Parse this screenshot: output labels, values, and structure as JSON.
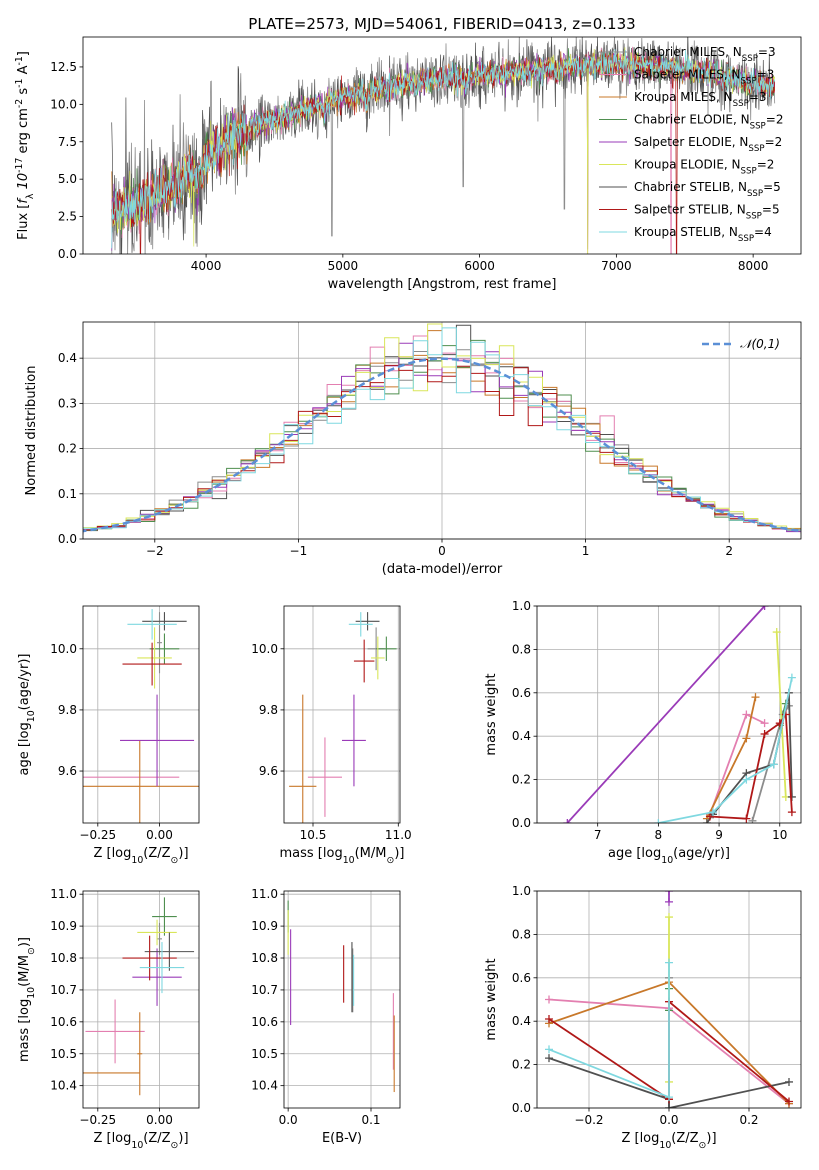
{
  "figure": {
    "title": "PLATE=2573, MJD=54061, FIBERID=0413, z=0.133"
  },
  "series_names": [
    "Chabrier MILES, N$_{SSP}$=3",
    "Salpeter MILES, N$_{SSP}$=3",
    "Kroupa MILES, N$_{SSP}$=3",
    "Chabrier ELODIE, N$_{SSP}$=2",
    "Salpeter ELODIE, N$_{SSP}$=2",
    "Kroupa ELODIE, N$_{SSP}$=2",
    "Chabrier STELIB, N$_{SSP}$=5",
    "Salpeter STELIB, N$_{SSP}$=5",
    "Kroupa STELIB, N$_{SSP}$=4"
  ],
  "colors": {
    "series": [
      "#8c8c8c",
      "#e37fb0",
      "#c8782a",
      "#4f8f4f",
      "#9a3bb8",
      "#d9e65a",
      "#505050",
      "#b01818",
      "#7fd8e0"
    ],
    "normal_curve": "#5b8fd6",
    "grid": "#b0b0b0"
  },
  "chart_data": [
    {
      "id": "spectrum",
      "type": "line",
      "title": "PLATE=2573, MJD=54061, FIBERID=0413, z=0.133",
      "xlabel": "wavelength [Angstrom, rest frame]",
      "ylabel": "Flux [$f_\\lambda 10^{-17}$ erg cm$^{-2}$ s$^{-1}$ A$^{-1}$]",
      "xlim": [
        3100,
        8350
      ],
      "ylim": [
        0,
        14.5
      ],
      "xticks": [
        4000,
        5000,
        6000,
        7000,
        8000
      ],
      "yticks": [
        0.0,
        2.5,
        5.0,
        7.5,
        10.0,
        12.5
      ],
      "ytick_labels": [
        "0.0",
        "2.5",
        "5.0",
        "7.5",
        "10.0",
        "12.5"
      ],
      "grid": false,
      "legend": "upper right",
      "continuum": {
        "x": [
          3300,
          3500,
          3700,
          3900,
          4000,
          4100,
          4200,
          4400,
          4600,
          4800,
          5000,
          5200,
          5400,
          5600,
          5800,
          6000,
          6200,
          6400,
          6600,
          6800,
          7000,
          7200,
          7400,
          7600,
          7800,
          8000,
          8150
        ],
        "y": [
          2.8,
          3.3,
          4.2,
          5.5,
          6.6,
          7.3,
          8.0,
          8.7,
          9.3,
          9.9,
          10.4,
          10.9,
          11.3,
          11.6,
          11.8,
          12.0,
          12.1,
          12.3,
          12.5,
          12.6,
          12.7,
          12.6,
          12.5,
          12.2,
          11.8,
          11.4,
          11.3
        ]
      }
    },
    {
      "id": "residuals",
      "type": "step",
      "xlabel": "(data-model)/error",
      "ylabel": "Normed distribution",
      "xlim": [
        -2.5,
        2.5
      ],
      "ylim": [
        0,
        0.48
      ],
      "xticks": [
        -2,
        -1,
        0,
        1,
        2
      ],
      "xtick_labels": [
        "−2",
        "−1",
        "0",
        "1",
        "2"
      ],
      "yticks": [
        0.0,
        0.1,
        0.2,
        0.3,
        0.4
      ],
      "ytick_labels": [
        "0.0",
        "0.1",
        "0.2",
        "0.3",
        "0.4"
      ],
      "grid": true,
      "legend": "upper right",
      "normal_label": "$\\mathcal{N}(0,1)$",
      "bin_width": 0.1
    },
    {
      "id": "age_vs_Z",
      "type": "errorbar",
      "xlabel": "Z [log$_{10}$(Z/Z$_\\odot$)]",
      "ylabel": "age  [log$_{10}$(age/yr)]",
      "xlim": [
        -0.31,
        0.16
      ],
      "ylim": [
        9.43,
        10.14
      ],
      "xticks": [
        -0.25,
        0.0
      ],
      "xtick_labels": [
        "−0.25",
        "0.00"
      ],
      "yticks": [
        9.6,
        9.8,
        10.0
      ],
      "ytick_labels": [
        "9.6",
        "9.8",
        "10.0"
      ],
      "grid": true,
      "points": [
        {
          "series": 0,
          "x": 0.0,
          "xerr": 0.01,
          "y": 10.02,
          "yerr": 0.1
        },
        {
          "series": 1,
          "x": -0.12,
          "xerr": 0.2,
          "y": 9.58,
          "yerr": 0.0
        },
        {
          "series": 2,
          "x": -0.08,
          "xerr": 0.24,
          "y": 9.55,
          "yerr": 0.15
        },
        {
          "series": 3,
          "x": 0.02,
          "xerr": 0.06,
          "y": 10.0,
          "yerr": 0.05
        },
        {
          "series": 4,
          "x": -0.01,
          "xerr": 0.15,
          "y": 9.7,
          "yerr": 0.15
        },
        {
          "series": 5,
          "x": -0.02,
          "xerr": 0.07,
          "y": 9.97,
          "yerr": 0.1
        },
        {
          "series": 6,
          "x": 0.02,
          "xerr": 0.09,
          "y": 10.09,
          "yerr": 0.03
        },
        {
          "series": 7,
          "x": -0.03,
          "xerr": 0.12,
          "y": 9.95,
          "yerr": 0.07
        },
        {
          "series": 8,
          "x": -0.03,
          "xerr": 0.1,
          "y": 10.08,
          "yerr": 0.05
        }
      ]
    },
    {
      "id": "age_vs_mass",
      "type": "errorbar",
      "xlabel": "mass [log$_{10}$(M/M$_\\odot$)]",
      "ylim": [
        9.43,
        10.14
      ],
      "xlim": [
        10.33,
        11.01
      ],
      "xticks": [
        10.5,
        11.0
      ],
      "xtick_labels": [
        "10.5",
        "11.0"
      ],
      "yticks": [
        9.6,
        9.8,
        10.0
      ],
      "ytick_labels": [
        "9.6",
        "9.8",
        "10.0"
      ],
      "grid": true,
      "points": [
        {
          "series": 0,
          "x": 10.87,
          "xerr": 0.05,
          "y": 10.0,
          "yerr": 0.07
        },
        {
          "series": 1,
          "x": 10.57,
          "xerr": 0.1,
          "y": 9.58,
          "yerr": 0.13
        },
        {
          "series": 2,
          "x": 10.44,
          "xerr": 0.08,
          "y": 9.55,
          "yerr": 0.3
        },
        {
          "series": 3,
          "x": 10.93,
          "xerr": 0.06,
          "y": 10.0,
          "yerr": 0.04
        },
        {
          "series": 4,
          "x": 10.74,
          "xerr": 0.07,
          "y": 9.7,
          "yerr": 0.15
        },
        {
          "series": 5,
          "x": 10.88,
          "xerr": 0.04,
          "y": 9.97,
          "yerr": 0.07
        },
        {
          "series": 6,
          "x": 10.82,
          "xerr": 0.07,
          "y": 10.09,
          "yerr": 0.03
        },
        {
          "series": 7,
          "x": 10.8,
          "xerr": 0.06,
          "y": 9.96,
          "yerr": 0.07
        },
        {
          "series": 8,
          "x": 10.78,
          "xerr": 0.07,
          "y": 10.08,
          "yerr": 0.04
        }
      ]
    },
    {
      "id": "weight_vs_age",
      "type": "line",
      "xlabel": "age  [log$_{10}$(age/yr)]",
      "ylabel": "mass weight",
      "xlim": [
        6.0,
        10.35
      ],
      "ylim": [
        0,
        1
      ],
      "xticks": [
        7,
        8,
        9,
        10
      ],
      "yticks": [
        0.0,
        0.2,
        0.4,
        0.6,
        0.8,
        1.0
      ],
      "ytick_labels": [
        "0.0",
        "0.2",
        "0.4",
        "0.6",
        "0.8",
        "1.0"
      ],
      "grid": true,
      "series": [
        {
          "series": 0,
          "x": [
            9.55,
            10.05,
            10.15
          ],
          "y": [
            0.01,
            0.5,
            0.54
          ]
        },
        {
          "series": 1,
          "x": [
            8.85,
            9.45,
            9.75
          ],
          "y": [
            0.04,
            0.5,
            0.46
          ]
        },
        {
          "series": 2,
          "x": [
            8.8,
            9.45,
            9.6
          ],
          "y": [
            0.02,
            0.39,
            0.58
          ]
        },
        {
          "series": 3,
          "x": [
            10.0,
            10.1
          ],
          "y": [
            0.45,
            0.55
          ]
        },
        {
          "series": 4,
          "x": [
            6.5,
            9.75
          ],
          "y": [
            0.0,
            1.0
          ]
        },
        {
          "series": 5,
          "x": [
            9.95,
            10.1
          ],
          "y": [
            0.88,
            0.12
          ]
        },
        {
          "series": 6,
          "x": [
            8.8,
            8.9,
            9.45,
            9.9,
            10.15,
            10.2
          ],
          "y": [
            0.0,
            0.04,
            0.23,
            0.27,
            0.6,
            0.12
          ]
        },
        {
          "series": 7,
          "x": [
            8.85,
            9.45,
            9.75,
            10.0,
            10.1,
            10.2
          ],
          "y": [
            0.03,
            0.02,
            0.41,
            0.46,
            0.5,
            0.05
          ]
        },
        {
          "series": 8,
          "x": [
            8.0,
            8.9,
            9.45,
            9.9,
            10.2
          ],
          "y": [
            0.0,
            0.05,
            0.2,
            0.27,
            0.67
          ]
        }
      ]
    },
    {
      "id": "mass_vs_Z",
      "type": "errorbar",
      "xlabel": "Z [log$_{10}$(Z/Z$_\\odot$)]",
      "ylabel": "mass [log$_{10}$(M/M$_\\odot$)]",
      "xlim": [
        -0.31,
        0.16
      ],
      "ylim": [
        10.33,
        11.01
      ],
      "xticks": [
        -0.25,
        0.0
      ],
      "xtick_labels": [
        "−0.25",
        "0.00"
      ],
      "yticks": [
        10.4,
        10.5,
        10.6,
        10.7,
        10.8,
        10.9,
        11.0
      ],
      "ytick_labels": [
        "10.4",
        "10.5",
        "10.6",
        "10.7",
        "10.8",
        "10.9",
        "11.0"
      ],
      "grid": true,
      "points": [
        {
          "series": 0,
          "x": 0.0,
          "xerr": 0.01,
          "y": 10.86,
          "yerr": 0.05
        },
        {
          "series": 1,
          "x": -0.18,
          "xerr": 0.12,
          "y": 10.57,
          "yerr": 0.1
        },
        {
          "series": 2,
          "x": -0.2,
          "xerr": 0.12,
          "y": 10.44,
          "yerr": 0.0
        },
        {
          "series": 3,
          "x": 0.02,
          "xerr": 0.05,
          "y": 10.93,
          "yerr": 0.06
        },
        {
          "series": 4,
          "x": -0.01,
          "xerr": 0.1,
          "y": 10.74,
          "yerr": 0.09
        },
        {
          "series": 5,
          "x": -0.01,
          "xerr": 0.08,
          "y": 10.88,
          "yerr": 0.04
        },
        {
          "series": 6,
          "x": 0.04,
          "xerr": 0.1,
          "y": 10.82,
          "yerr": 0.06
        },
        {
          "series": 7,
          "x": -0.04,
          "xerr": 0.11,
          "y": 10.8,
          "yerr": 0.07
        },
        {
          "series": 8,
          "x": 0.01,
          "xerr": 0.09,
          "y": 10.77,
          "yerr": 0.08
        },
        {
          "series": 2,
          "x": -0.08,
          "xerr": 0.01,
          "y": 10.5,
          "yerr": 0.13
        }
      ]
    },
    {
      "id": "mass_vs_ebv",
      "type": "errorbar",
      "xlabel": "E(B-V)",
      "xlim": [
        -0.005,
        0.135
      ],
      "ylim": [
        10.33,
        11.01
      ],
      "xticks": [
        0.0,
        0.1
      ],
      "xtick_labels": [
        "0.0",
        "0.1"
      ],
      "yticks": [
        10.4,
        10.5,
        10.6,
        10.7,
        10.8,
        10.9,
        11.0
      ],
      "ytick_labels": [
        "10.4",
        "10.5",
        "10.6",
        "10.7",
        "10.8",
        "10.9",
        "11.0"
      ],
      "grid": true,
      "points": [
        {
          "series": 0,
          "x": 0.078,
          "y": 10.73,
          "yerr": 0.1
        },
        {
          "series": 1,
          "x": 0.127,
          "y": 10.57,
          "yerr": 0.12
        },
        {
          "series": 2,
          "x": 0.128,
          "y": 10.5,
          "yerr": 0.12
        },
        {
          "series": 3,
          "x": 0.0,
          "y": 10.93,
          "yerr": 0.05
        },
        {
          "series": 4,
          "x": 0.003,
          "y": 10.74,
          "yerr": 0.15
        },
        {
          "series": 5,
          "x": 0.0,
          "y": 10.88,
          "yerr": 0.07
        },
        {
          "series": 6,
          "x": 0.077,
          "y": 10.74,
          "yerr": 0.11
        },
        {
          "series": 7,
          "x": 0.067,
          "y": 10.75,
          "yerr": 0.09
        },
        {
          "series": 8,
          "x": 0.079,
          "y": 10.73,
          "yerr": 0.08
        }
      ]
    },
    {
      "id": "weight_vs_Z",
      "type": "line",
      "xlabel": "Z [log$_{10}$(Z/Z$_\\odot$)]",
      "ylabel": "mass weight",
      "xlim": [
        -0.33,
        0.33
      ],
      "ylim": [
        0,
        1
      ],
      "xticks": [
        -0.2,
        0.0,
        0.2
      ],
      "xtick_labels": [
        "−0.2",
        "0.0",
        "0.2"
      ],
      "yticks": [
        0.0,
        0.2,
        0.4,
        0.6,
        0.8,
        1.0
      ],
      "ytick_labels": [
        "0.0",
        "0.2",
        "0.4",
        "0.6",
        "0.8",
        "1.0"
      ],
      "grid": true,
      "series": [
        {
          "series": 0,
          "x": [
            0.0,
            0.0
          ],
          "y": [
            0.0,
            0.6
          ]
        },
        {
          "series": 1,
          "x": [
            -0.3,
            0.0,
            0.3
          ],
          "y": [
            0.5,
            0.46,
            0.02
          ]
        },
        {
          "series": 2,
          "x": [
            -0.3,
            0.0,
            0.3
          ],
          "y": [
            0.39,
            0.58,
            0.02
          ]
        },
        {
          "series": 3,
          "x": [
            0.0,
            0.0
          ],
          "y": [
            0.45,
            0.55
          ]
        },
        {
          "series": 4,
          "x": [
            0.0,
            0.0
          ],
          "y": [
            0.95,
            1.0
          ]
        },
        {
          "series": 5,
          "x": [
            0.0,
            0.0
          ],
          "y": [
            0.12,
            0.88
          ]
        },
        {
          "series": 6,
          "x": [
            -0.3,
            0.0,
            0.0,
            0.3
          ],
          "y": [
            0.23,
            0.04,
            0.0,
            0.12
          ]
        },
        {
          "series": 7,
          "x": [
            -0.3,
            0.0,
            0.0,
            0.3
          ],
          "y": [
            0.41,
            0.04,
            0.49,
            0.03
          ]
        },
        {
          "series": 8,
          "x": [
            -0.3,
            0.0,
            0.0
          ],
          "y": [
            0.27,
            0.05,
            0.67
          ]
        }
      ]
    }
  ]
}
